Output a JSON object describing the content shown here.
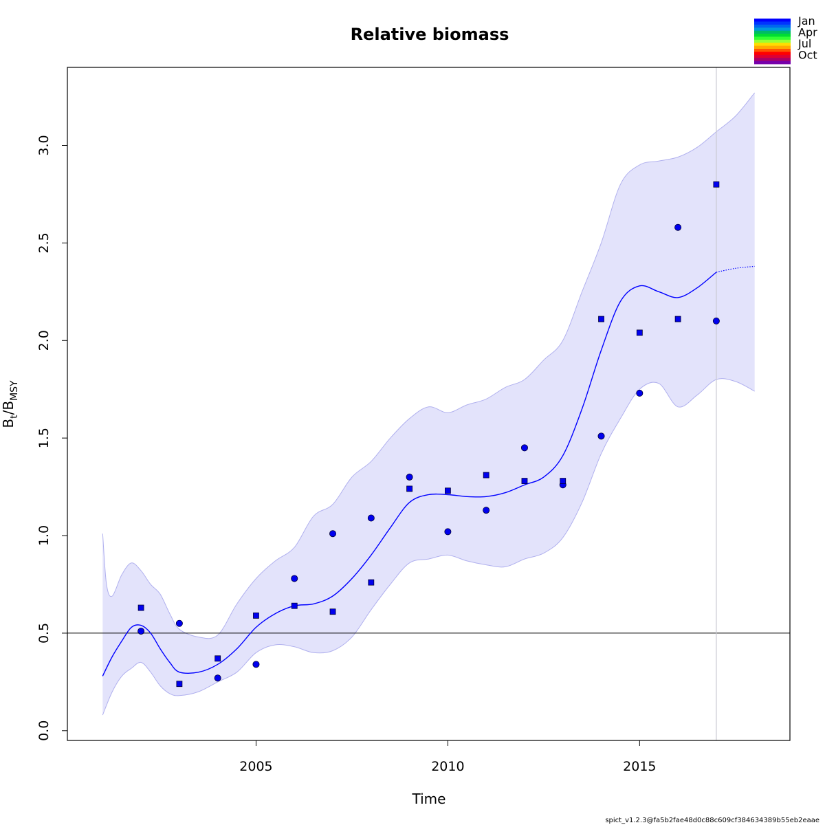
{
  "chart_data": {
    "type": "line",
    "title": "Relative biomass",
    "xlabel": "Time",
    "ylabel_main_1": "B",
    "ylabel_sub_1": "t",
    "ylabel_slash": "/B",
    "ylabel_sub_2": "MSY",
    "xlim": [
      2000.08,
      2018.92
    ],
    "ylim": [
      -0.05,
      3.4
    ],
    "x_ticks": [
      2005,
      2010,
      2015
    ],
    "x_tick_labels": [
      "2005",
      "2010",
      "2015"
    ],
    "y_ticks": [
      0.0,
      0.5,
      1.0,
      1.5,
      2.0,
      2.5,
      3.0
    ],
    "y_tick_labels": [
      "0.0",
      "0.5",
      "1.0",
      "1.5",
      "2.0",
      "2.5",
      "3.0"
    ],
    "reference_line_y": 0.5,
    "vertical_line_x": 2017,
    "estimate": {
      "x": [
        2001.0,
        2001.25,
        2001.5,
        2001.75,
        2002.0,
        2002.25,
        2002.5,
        2002.75,
        2003.0,
        2003.5,
        2004.0,
        2004.5,
        2005.0,
        2005.5,
        2006.0,
        2006.5,
        2007.0,
        2007.5,
        2008.0,
        2008.5,
        2009.0,
        2009.5,
        2010.0,
        2010.5,
        2011.0,
        2011.5,
        2012.0,
        2012.5,
        2013.0,
        2013.5,
        2014.0,
        2014.5,
        2015.0,
        2015.5,
        2016.0,
        2016.5,
        2017.0
      ],
      "y": [
        0.28,
        0.38,
        0.46,
        0.53,
        0.54,
        0.5,
        0.42,
        0.35,
        0.3,
        0.3,
        0.34,
        0.42,
        0.53,
        0.6,
        0.64,
        0.65,
        0.69,
        0.78,
        0.9,
        1.04,
        1.17,
        1.21,
        1.21,
        1.2,
        1.2,
        1.22,
        1.26,
        1.3,
        1.41,
        1.65,
        1.95,
        2.2,
        2.28,
        2.25,
        2.22,
        2.27,
        2.35
      ]
    },
    "forecast": {
      "x": [
        2017.0,
        2017.5,
        2018.0
      ],
      "y": [
        2.35,
        2.37,
        2.38
      ]
    },
    "ci_upper": {
      "x": [
        2001.0,
        2001.1,
        2001.25,
        2001.5,
        2001.75,
        2002.0,
        2002.25,
        2002.5,
        2002.75,
        2003.0,
        2003.5,
        2004.0,
        2004.5,
        2005.0,
        2005.5,
        2006.0,
        2006.5,
        2007.0,
        2007.5,
        2008.0,
        2008.5,
        2009.0,
        2009.5,
        2010.0,
        2010.5,
        2011.0,
        2011.5,
        2012.0,
        2012.5,
        2013.0,
        2013.5,
        2014.0,
        2014.5,
        2015.0,
        2015.5,
        2016.0,
        2016.5,
        2017.0,
        2017.5,
        2018.0
      ],
      "y": [
        1.01,
        0.75,
        0.69,
        0.8,
        0.86,
        0.82,
        0.75,
        0.7,
        0.6,
        0.52,
        0.48,
        0.49,
        0.65,
        0.78,
        0.87,
        0.94,
        1.1,
        1.16,
        1.3,
        1.38,
        1.5,
        1.6,
        1.66,
        1.63,
        1.67,
        1.7,
        1.76,
        1.8,
        1.9,
        2.0,
        2.25,
        2.5,
        2.8,
        2.9,
        2.92,
        2.94,
        2.99,
        3.07,
        3.15,
        3.27
      ]
    },
    "ci_lower": {
      "x": [
        2001.0,
        2001.25,
        2001.5,
        2001.75,
        2002.0,
        2002.25,
        2002.5,
        2002.75,
        2003.0,
        2003.5,
        2004.0,
        2004.5,
        2005.0,
        2005.5,
        2006.0,
        2006.5,
        2007.0,
        2007.5,
        2008.0,
        2008.5,
        2009.0,
        2009.5,
        2010.0,
        2010.5,
        2011.0,
        2011.5,
        2012.0,
        2012.5,
        2013.0,
        2013.5,
        2014.0,
        2014.5,
        2015.0,
        2015.5,
        2016.0,
        2016.5,
        2017.0,
        2017.5,
        2018.0
      ],
      "y": [
        0.08,
        0.2,
        0.28,
        0.32,
        0.35,
        0.3,
        0.23,
        0.19,
        0.18,
        0.2,
        0.25,
        0.3,
        0.4,
        0.44,
        0.43,
        0.4,
        0.41,
        0.48,
        0.62,
        0.75,
        0.86,
        0.88,
        0.9,
        0.87,
        0.85,
        0.84,
        0.88,
        0.91,
        0.99,
        1.17,
        1.42,
        1.6,
        1.75,
        1.78,
        1.66,
        1.72,
        1.8,
        1.79,
        1.74
      ]
    },
    "index_1_circles": {
      "x": [
        2002,
        2003,
        2004,
        2005,
        2006,
        2007,
        2008,
        2009,
        2010,
        2011,
        2012,
        2013,
        2014,
        2015,
        2016,
        2017
      ],
      "y": [
        0.51,
        0.55,
        0.27,
        0.34,
        0.78,
        1.01,
        1.09,
        1.3,
        1.02,
        1.13,
        1.45,
        1.26,
        1.51,
        1.73,
        2.58,
        2.1
      ]
    },
    "index_2_squares": {
      "x": [
        2002,
        2003,
        2004,
        2005,
        2006,
        2007,
        2008,
        2009,
        2010,
        2011,
        2012,
        2013,
        2014,
        2015,
        2016,
        2017
      ],
      "y": [
        0.63,
        0.24,
        0.37,
        0.59,
        0.64,
        0.61,
        0.76,
        1.24,
        1.23,
        1.31,
        1.28,
        1.28,
        2.11,
        2.04,
        2.11,
        2.8
      ]
    },
    "legend": {
      "placement": "top-right",
      "labels": [
        "Jan",
        "Apr",
        "Jul",
        "Oct"
      ],
      "colors": [
        "#0000ff",
        "#0033ff",
        "#0066ee",
        "#0099dd",
        "#00bb66",
        "#00dd33",
        "#33ff33",
        "#99ff33",
        "#ffdd00",
        "#ffaa00",
        "#ff5500",
        "#ff0000",
        "#dd0033",
        "#aa0066",
        "#7700aa"
      ]
    },
    "colors": {
      "estimate": "#0000ff",
      "ci_fill": "#e3e3fb",
      "ci_border": "#b0b0ee",
      "points_fill": "#0000ee",
      "vertical_line": "#c8c8d0"
    },
    "footer": "spict_v1.2.3@fa5b2fae48d0c88c609cf384634389b55eb2eaae"
  }
}
